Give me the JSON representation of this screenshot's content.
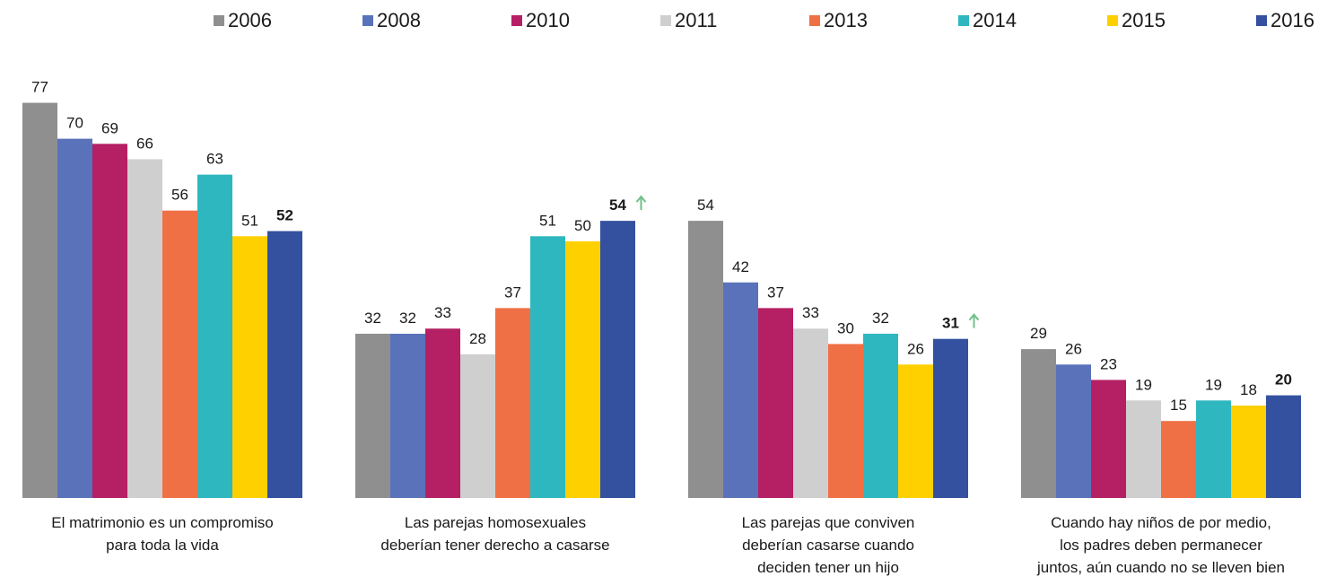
{
  "chart_data": {
    "type": "bar",
    "categories": [
      "El matrimonio es un compromiso\npara toda la vida",
      "Las parejas homosexuales\ndeberían tener derecho a casarse",
      "Las parejas que conviven\ndeberían casarse cuando\ndeciden tener un hijo",
      "Cuando hay niños de por medio,\nlos padres deben permanecer\njuntos, aún cuando no se lleven bien"
    ],
    "series": [
      {
        "name": "2006",
        "color": "#8f8f8f",
        "values": [
          77,
          32,
          54,
          29
        ]
      },
      {
        "name": "2008",
        "color": "#5a72ba",
        "values": [
          70,
          32,
          42,
          26
        ]
      },
      {
        "name": "2010",
        "color": "#b51f63",
        "values": [
          69,
          33,
          37,
          23
        ]
      },
      {
        "name": "2011",
        "color": "#cfcfcf",
        "values": [
          66,
          28,
          33,
          19
        ]
      },
      {
        "name": "2013",
        "color": "#ef7044",
        "values": [
          56,
          37,
          30,
          15
        ]
      },
      {
        "name": "2014",
        "color": "#2fb7c0",
        "values": [
          63,
          51,
          32,
          19
        ]
      },
      {
        "name": "2015",
        "color": "#ffd000",
        "values": [
          51,
          50,
          26,
          18
        ]
      },
      {
        "name": "2016",
        "color": "#34519f",
        "values": [
          52,
          54,
          31,
          20
        ]
      }
    ]
  }
}
